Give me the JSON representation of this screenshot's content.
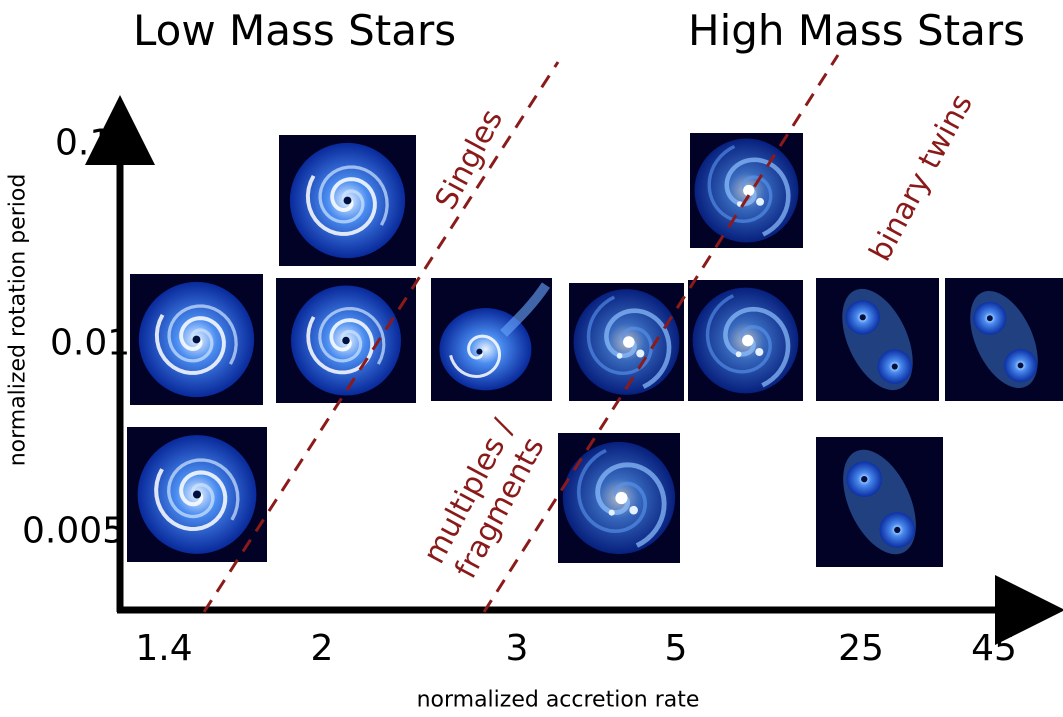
{
  "header": {
    "low_mass": "Low Mass Stars",
    "high_mass": "High Mass Stars"
  },
  "axes": {
    "x_title": "normalized accretion rate",
    "y_title": "normalized rotation period",
    "x_ticks": [
      "1.4",
      "2",
      "3",
      "5",
      "25",
      "45"
    ],
    "y_ticks": [
      "0.1",
      "0.01",
      "0.005"
    ]
  },
  "regions": {
    "singles": "Singles",
    "binary": "binary twins",
    "multiples_line1": "multiples /",
    "multiples_line2": "fragments"
  },
  "colors": {
    "boundary_line": "#8b1a1a",
    "panel_background": "#010226",
    "disk_core": "#e8f4ff",
    "disk_mid": "#4a8cf0",
    "disk_outer": "#0a2ea8"
  },
  "panels": [
    {
      "id": "p-2-0.1",
      "accretion": "2",
      "rotation": "0.1",
      "kind": "single-spiral"
    },
    {
      "id": "p-5-0.1",
      "accretion": "5",
      "rotation": "0.1",
      "kind": "multiple"
    },
    {
      "id": "p-1.4-0.01",
      "accretion": "1.4",
      "rotation": "0.01",
      "kind": "single-spiral"
    },
    {
      "id": "p-2-0.01",
      "accretion": "2",
      "rotation": "0.01",
      "kind": "single-spiral"
    },
    {
      "id": "p-3-0.01",
      "accretion": "3",
      "rotation": "0.01",
      "kind": "filament-spiral"
    },
    {
      "id": "p-3.5-0.01",
      "accretion": "3.5",
      "rotation": "0.01",
      "kind": "multiple"
    },
    {
      "id": "p-5-0.01",
      "accretion": "5",
      "rotation": "0.01",
      "kind": "multiple"
    },
    {
      "id": "p-25-0.01",
      "accretion": "25",
      "rotation": "0.01",
      "kind": "binary"
    },
    {
      "id": "p-45-0.01",
      "accretion": "45",
      "rotation": "0.01",
      "kind": "binary"
    },
    {
      "id": "p-1.4-0.005",
      "accretion": "1.4",
      "rotation": "0.005",
      "kind": "single-spiral"
    },
    {
      "id": "p-4-0.005",
      "accretion": "4",
      "rotation": "0.005",
      "kind": "multiple"
    },
    {
      "id": "p-25-0.005",
      "accretion": "25",
      "rotation": "0.005",
      "kind": "binary"
    }
  ]
}
